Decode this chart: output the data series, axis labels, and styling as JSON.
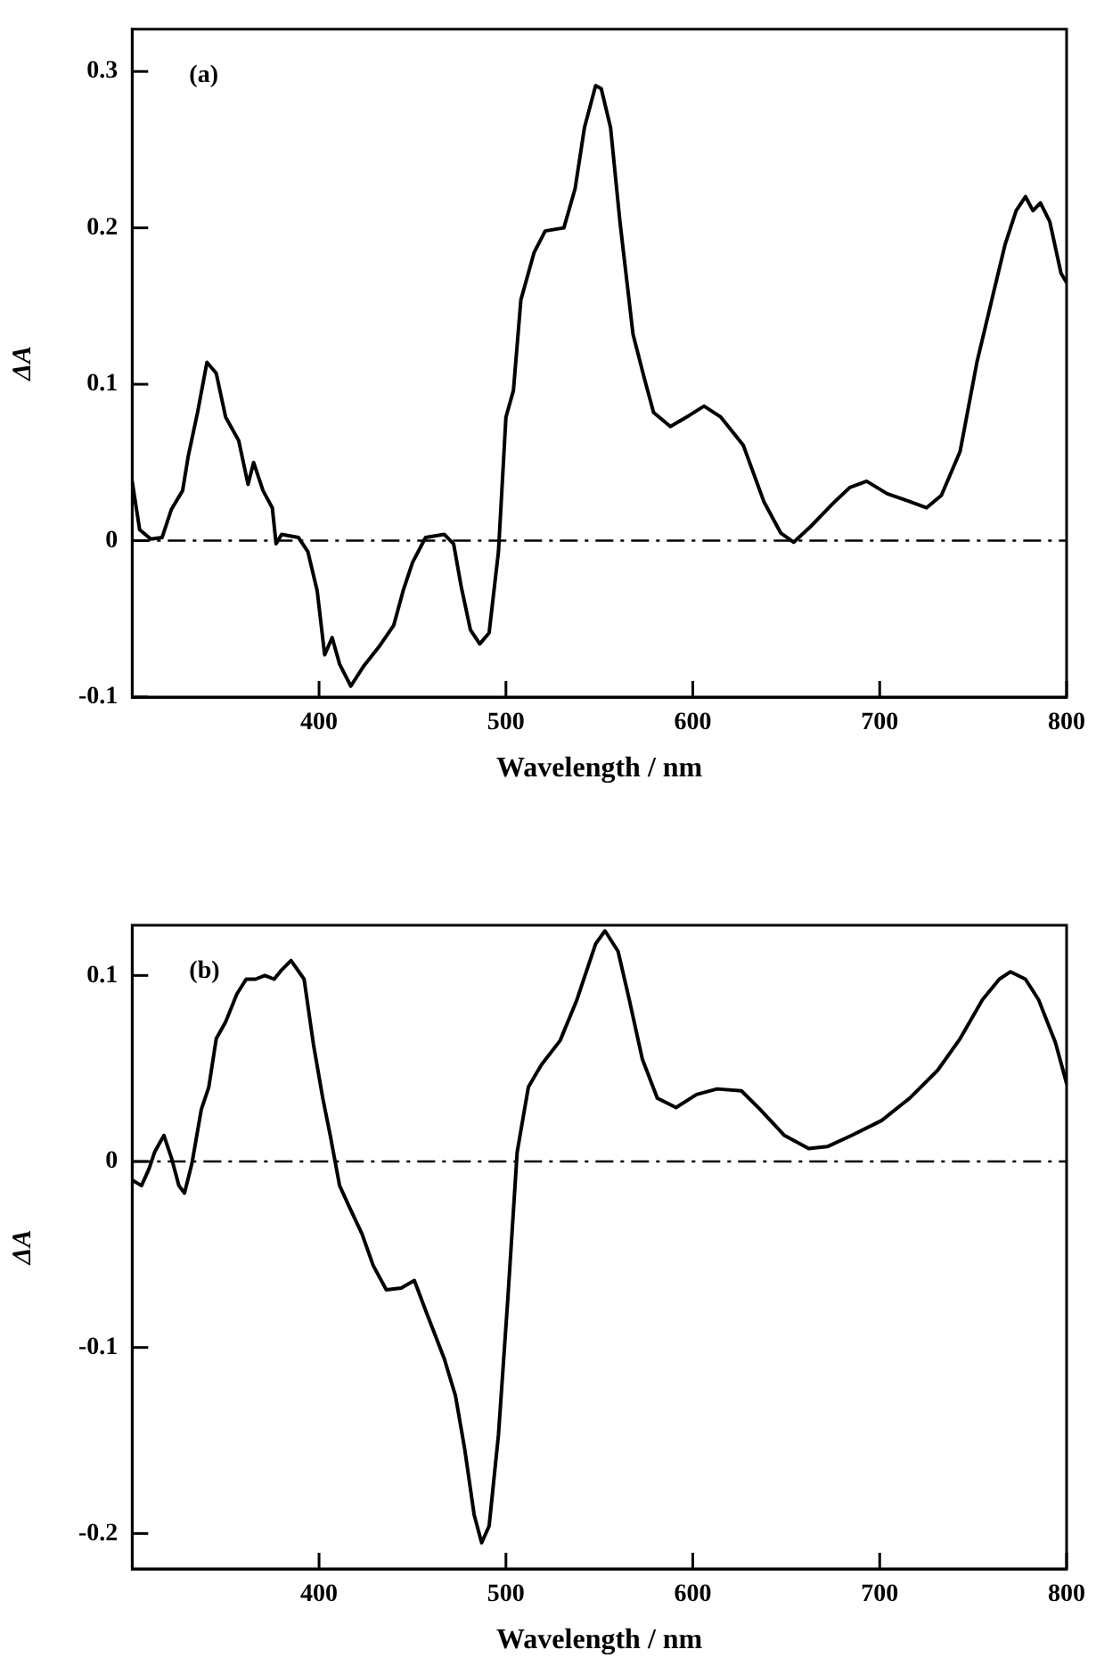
{
  "chart_data": [
    {
      "type": "line",
      "xlabel": "Wavelength / nm",
      "ylabel": "ΔA",
      "annotations": [
        "(a)"
      ],
      "xlim": [
        300,
        800
      ],
      "xticks": [
        400,
        500,
        600,
        700,
        800
      ],
      "ylim": [
        -0.1,
        0.327
      ],
      "yticks": [
        -0.1,
        0,
        0.1,
        0.2,
        0.3
      ],
      "grid": false,
      "legend": false,
      "marker": "none",
      "line_style": "solid",
      "ref_lines": [
        {
          "axis": "y",
          "value": 0,
          "line_style": "dashdot",
          "color": "#000000"
        }
      ],
      "series": [
        {
          "color": "#000000",
          "x": [
            300,
            304,
            310,
            316,
            321,
            327,
            330,
            335,
            340,
            345,
            350,
            357,
            362,
            365,
            370,
            375,
            377,
            380,
            389,
            394,
            399,
            403,
            407,
            411,
            417,
            424,
            432,
            440,
            445,
            450,
            457,
            467,
            472,
            476,
            481,
            486,
            491,
            496,
            500,
            504,
            508,
            515,
            521,
            531,
            537,
            542,
            548,
            551,
            556,
            561,
            568,
            574,
            579,
            588,
            598,
            606,
            615,
            627,
            638,
            647,
            654,
            663,
            676,
            684,
            693,
            704,
            716,
            725,
            733,
            743,
            752,
            760,
            767,
            773,
            778,
            782,
            786,
            791,
            797,
            800
          ],
          "values": [
            0.038,
            0.007,
            0.001,
            0.002,
            0.02,
            0.032,
            0.054,
            0.082,
            0.114,
            0.107,
            0.079,
            0.064,
            0.036,
            0.05,
            0.032,
            0.021,
            -0.002,
            0.004,
            0.002,
            -0.007,
            -0.032,
            -0.073,
            -0.062,
            -0.079,
            -0.093,
            -0.08,
            -0.068,
            -0.054,
            -0.032,
            -0.014,
            0.002,
            0.004,
            -0.002,
            -0.029,
            -0.057,
            -0.066,
            -0.059,
            -0.007,
            0.079,
            0.096,
            0.154,
            0.184,
            0.198,
            0.2,
            0.225,
            0.264,
            0.291,
            0.289,
            0.264,
            0.204,
            0.132,
            0.104,
            0.082,
            0.073,
            0.08,
            0.086,
            0.079,
            0.061,
            0.025,
            0.005,
            -0.001,
            0.009,
            0.025,
            0.034,
            0.038,
            0.03,
            0.025,
            0.021,
            0.029,
            0.057,
            0.114,
            0.154,
            0.189,
            0.211,
            0.22,
            0.211,
            0.216,
            0.204,
            0.171,
            0.165
          ]
        }
      ]
    },
    {
      "type": "line",
      "xlabel": "Wavelength / nm",
      "ylabel": "ΔA",
      "annotations": [
        "(b)"
      ],
      "xlim": [
        300,
        800
      ],
      "xticks": [
        400,
        500,
        600,
        700,
        800
      ],
      "ylim": [
        -0.219,
        0.127
      ],
      "yticks": [
        -0.2,
        -0.1,
        0,
        0.1
      ],
      "grid": false,
      "legend": false,
      "marker": "none",
      "line_style": "solid",
      "ref_lines": [
        {
          "axis": "y",
          "value": 0,
          "line_style": "dashdot",
          "color": "#000000"
        }
      ],
      "series": [
        {
          "color": "#000000",
          "x": [
            300,
            305,
            309,
            312,
            317,
            321,
            325,
            328,
            332,
            337,
            341,
            345,
            350,
            356,
            361,
            366,
            371,
            376,
            380,
            385,
            392,
            397,
            402,
            406,
            411,
            416,
            423,
            429,
            436,
            444,
            451,
            457,
            467,
            473,
            478,
            483,
            487,
            491,
            496,
            501,
            506,
            512,
            519,
            529,
            538,
            548,
            553,
            560,
            566,
            573,
            581,
            591,
            602,
            613,
            626,
            636,
            649,
            662,
            672,
            685,
            701,
            716,
            731,
            743,
            755,
            764,
            770,
            778,
            785,
            794,
            800
          ],
          "values": [
            -0.01,
            -0.013,
            -0.004,
            0.005,
            0.014,
            0.002,
            -0.013,
            -0.017,
            -0.001,
            0.028,
            0.04,
            0.066,
            0.075,
            0.09,
            0.098,
            0.098,
            0.1,
            0.098,
            0.103,
            0.108,
            0.098,
            0.063,
            0.034,
            0.014,
            -0.013,
            -0.024,
            -0.039,
            -0.056,
            -0.069,
            -0.068,
            -0.064,
            -0.08,
            -0.106,
            -0.126,
            -0.155,
            -0.19,
            -0.205,
            -0.196,
            -0.147,
            -0.074,
            0.005,
            0.04,
            0.052,
            0.065,
            0.087,
            0.117,
            0.124,
            0.113,
            0.087,
            0.055,
            0.034,
            0.029,
            0.036,
            0.039,
            0.038,
            0.028,
            0.014,
            0.007,
            0.008,
            0.014,
            0.022,
            0.034,
            0.049,
            0.066,
            0.087,
            0.098,
            0.102,
            0.098,
            0.087,
            0.064,
            0.042
          ]
        }
      ]
    }
  ]
}
